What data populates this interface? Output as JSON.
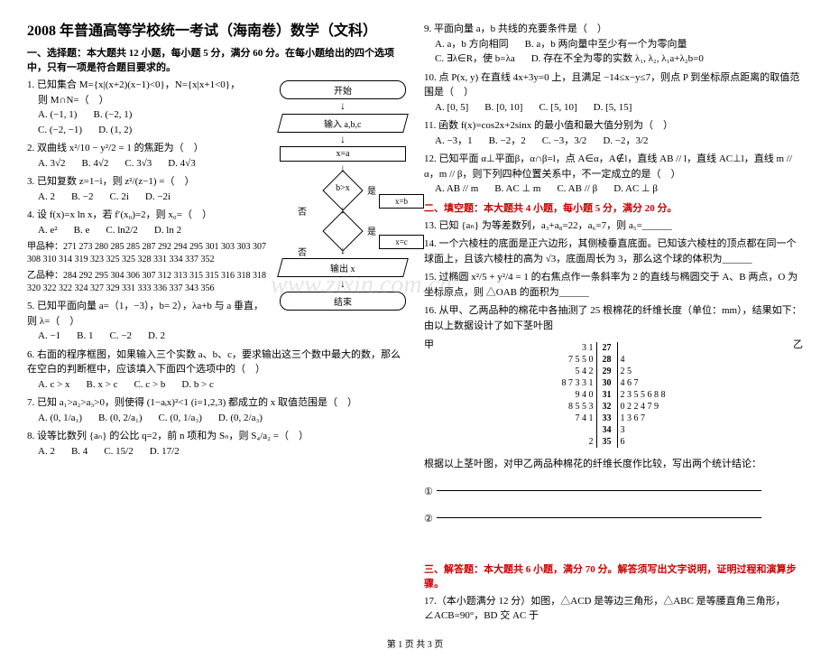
{
  "title": "2008 年普通高等学校统一考试（海南卷）数学（文科）",
  "section1": "一、选择题：本大题共 12 小题，每小题 5 分，满分 60 分。在每小题给出的四个选项中，只有一项是符合题目要求的。",
  "q1": {
    "stem": "1. 已知集合 M={x|(x+2)(x−1)<0}，N={x|x+1<0}，",
    "sub": "则 M∩N=（　）",
    "a": "A. (−1, 1)",
    "b": "B. (−2, 1)",
    "c": "C. (−2, −1)",
    "d": "D. (1, 2)"
  },
  "q2": {
    "stem": "2. 双曲线 x²/10 − y²/2 = 1 的焦距为（　）",
    "a": "A. 3√2",
    "b": "B. 4√2",
    "c": "C. 3√3",
    "d": "D. 4√3"
  },
  "q3": {
    "stem": "3. 已知复数 z=1−i，则 z²/(z−1) =（　）",
    "a": "A. 2",
    "b": "B. −2",
    "c": "C. 2i",
    "d": "D. −2i"
  },
  "q4": {
    "stem": "4. 设 f(x)=x ln x，若 f′(x₀)=2，则 x₀=（　）",
    "a": "A. e²",
    "b": "B. e",
    "c": "C. ln2/2",
    "d": "D. ln 2"
  },
  "q5": {
    "stem": "5. 已知平面向量 a=（1，−3），b= 2），λa+b 与 a 垂直，则 λ=（　）",
    "a": "A. −1",
    "b": "B. 1",
    "c": "C. −2",
    "d": "D. 2"
  },
  "q6": {
    "stem": "6. 右面的程序框图，如果输入三个实数 a、b、c，要求输出这三个数中最大的数，那么在空白的判断框中，应该填入下面四个选项中的（　）",
    "a": "A. c > x",
    "b": "B. x > c",
    "c": "C. c > b",
    "d": "D. b > c"
  },
  "q7": {
    "stem": "7. 已知 a₁>a₂>a₃>0，则使得 (1−aᵢx)²<1 (i=1,2,3) 都成立的 x 取值范围是（　）",
    "a": "A. (0, 1/a₁)",
    "b": "B. (0, 2/a₁)",
    "c": "C. (0, 1/a₃)",
    "d": "D. (0, 2/a₃)"
  },
  "q8": {
    "stem": "8. 设等比数列 {aₙ} 的公比 q=2，前 n 项和为 Sₙ，则 S₄/a₂ =（　）",
    "a": "A. 2",
    "b": "B. 4",
    "c": "C. 15/2",
    "d": "D. 17/2"
  },
  "q9": {
    "stem": "9. 平面向量 a，b 共线的充要条件是（　）",
    "a": "A. a，b 方向相同",
    "b": "B. a，b 两向量中至少有一个为零向量",
    "c": "C. ∃λ∈R，使 b=λa",
    "d": "D. 存在不全为零的实数 λ₁, λ₂, λ₁a+λ₂b=0"
  },
  "q10": {
    "stem": "10. 点 P(x, y) 在直线 4x+3y=0 上，且满足 −14≤x−y≤7，则点 P 到坐标原点距离的取值范围是（　）",
    "a": "A. [0, 5]",
    "b": "B. [0, 10]",
    "c": "C. [5, 10]",
    "d": "D. [5, 15]"
  },
  "q11": {
    "stem": "11. 函数 f(x)=cos2x+2sinx 的最小值和最大值分别为（　）",
    "a": "A. −3，1",
    "b": "B. −2，2",
    "c": "C. −3，3/2",
    "d": "D. −2，3/2"
  },
  "q12": {
    "stem": "12. 已知平面 α⊥平面β，α∩β=l，点 A∈α，A∉l，直线 AB // l，直线 AC⊥l，直线 m // α，m // β，则下列四种位置关系中，不一定成立的是（　）",
    "a": "A. AB // m",
    "b": "B. AC ⊥ m",
    "c": "C. AB // β",
    "d": "D. AC ⊥ β"
  },
  "section2": "二、填空题：本大题共 4 小题，每小题 5 分，满分 20 分。",
  "q13": "13. 已知 {aₙ} 为等差数列，a₃+a₈=22，a₆=7，则 a₅=______",
  "q14": "14. 一个六棱柱的底面是正六边形，其侧棱垂直底面。已知该六棱柱的顶点都在同一个球面上，且该六棱柱的高为 √3，底面周长为 3，那么这个球的体积为______",
  "q15": "15. 过椭圆 x²/5 + y²/4 = 1 的右焦点作一条斜率为 2 的直线与椭圆交于 A、B 两点，O 为坐标原点，则 △OAB 的面积为______",
  "q16": {
    "stem": "16. 从甲、乙两品种的棉花中各抽测了 25 根棉花的纤维长度（单位：mm），结果如下：",
    "data_jia_label": "甲品种：",
    "data_jia": "271 273 280 285 285 287 292 294 295 301 303 303 307 308 310 314 319 323 325 325 328 331 334 337 352",
    "data_yi_label": "乙品种：",
    "data_yi": "284 292 295 304 306 307 312 313 315 315 316 318 318 320 322 322 324 327 329 331 333 336 337 343 356",
    "post": "由以上数据设计了如下茎叶图",
    "conclusion_intro": "根据以上茎叶图，对甲乙两品种棉花的纤维长度作比较，写出两个统计结论：",
    "line1": "①",
    "line2": "②"
  },
  "stemleaf": {
    "jia_label": "甲",
    "yi_label": "乙",
    "rows": [
      {
        "left": "3 1",
        "stem": "27",
        "right": ""
      },
      {
        "left": "7 5 5 0",
        "stem": "28",
        "right": "4"
      },
      {
        "left": "5 4 2",
        "stem": "29",
        "right": "2 5"
      },
      {
        "left": "8 7 3 3 1",
        "stem": "30",
        "right": "4 6 7"
      },
      {
        "left": "9 4 0",
        "stem": "31",
        "right": "2 3 5 5 6 8 8"
      },
      {
        "left": "8 5 5 3",
        "stem": "32",
        "right": "0 2 2 4 7 9"
      },
      {
        "left": "7 4 1",
        "stem": "33",
        "right": "1 3 6 7"
      },
      {
        "left": "",
        "stem": "34",
        "right": "3"
      },
      {
        "left": "2",
        "stem": "35",
        "right": "6"
      }
    ]
  },
  "section3": "三、解答题：本大题共 6 小题，满分 70 分。解答须写出文字说明，证明过程和演算步骤。",
  "q17": "17.（本小题满分 12 分）如图，△ACD 是等边三角形，△ABC 是等腰直角三角形，∠ACB=90°，BD 交 AC 于",
  "flowchart": {
    "start": "开始",
    "input": "输入 a,b,c",
    "assign1": "x=a",
    "cond1": "b>x",
    "assign2": "x=b",
    "yes": "是",
    "no": "否",
    "assign3": "x=c",
    "output": "输出 x",
    "end": "结束"
  },
  "footer": "第 1 页 共 3 页",
  "watermark": "www.zixin.com.cn"
}
